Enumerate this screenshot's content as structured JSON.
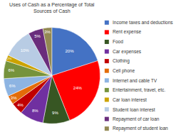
{
  "chart_data": {
    "type": "pie",
    "title": "Uses of Cash as a Percentage of Total\nSources of Cash",
    "categories": [
      "Income taxes and deductions",
      "Rent expense",
      "Food",
      "Car expenses",
      "Clothing",
      "Cell phone",
      "Internet and cable TV",
      "Entertainment, travel, etc.",
      "Car loan interest",
      "Student loan interest",
      "Repayment of car loan",
      "Repayment of student loan"
    ],
    "values": [
      20,
      24,
      9,
      8,
      4,
      3,
      6,
      6,
      2,
      10,
      5,
      3
    ],
    "value_labels": [
      "20%",
      "24%",
      "9%",
      "8%",
      "4%",
      "3%",
      "6%",
      "6%",
      "2%",
      "10%",
      "5%",
      "3%"
    ],
    "colors": [
      "#4472C4",
      "#FF0000",
      "#375623",
      "#7030A0",
      "#C00000",
      "#E36C09",
      "#8DB4E2",
      "#76933C",
      "#CCA300",
      "#B8CCE4",
      "#6A2D7C",
      "#938953"
    ],
    "data_labels": true,
    "legend": "right"
  }
}
